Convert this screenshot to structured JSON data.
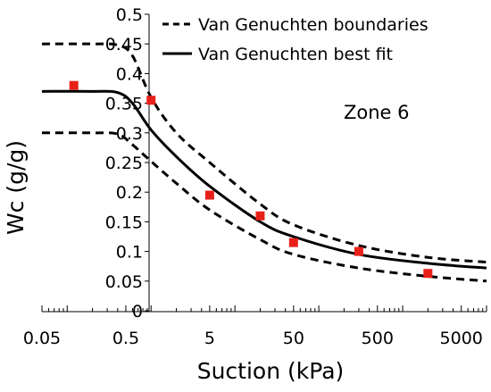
{
  "chart_data": {
    "type": "scatter",
    "xlabel": "Suction (kPa)",
    "ylabel": "Wc (g/g)",
    "x_scale": "log",
    "xlim": [
      0.05,
      10000
    ],
    "ylim": [
      0,
      0.5
    ],
    "x_tick_values": [
      0.05,
      0.5,
      5,
      50,
      500,
      5000
    ],
    "x_tick_labels": [
      "0.05",
      "0.5",
      "5",
      "50",
      "500",
      "5000"
    ],
    "y_tick_values": [
      0,
      0.05,
      0.1,
      0.15,
      0.2,
      0.25,
      0.3,
      0.35,
      0.4,
      0.45,
      0.5
    ],
    "y_tick_labels": [
      "0",
      "0.05",
      "0.1",
      "0.15",
      "0.2",
      "0.25",
      "0.3",
      "0.35",
      "0.4",
      "0.45",
      "0.5"
    ],
    "grid": false,
    "legend_position": "top-right",
    "legend": [
      {
        "label": "Van Genuchten boundaries",
        "style": "dashed"
      },
      {
        "label": "Van Genuchten best fit",
        "style": "solid"
      }
    ],
    "annotation": "Zone 6",
    "points": {
      "color": "#e8201a",
      "x": [
        0.12,
        1,
        5,
        20,
        50,
        300,
        2000
      ],
      "y": [
        0.38,
        0.355,
        0.195,
        0.16,
        0.115,
        0.1,
        0.063
      ]
    },
    "best_fit": {
      "color": "#000000",
      "x": [
        0.05,
        0.2,
        0.4,
        0.6,
        1,
        2,
        5,
        20,
        50,
        300,
        2000,
        10000
      ],
      "y": [
        0.37,
        0.37,
        0.368,
        0.35,
        0.305,
        0.26,
        0.21,
        0.15,
        0.125,
        0.095,
        0.08,
        0.072
      ]
    },
    "upper_boundary": {
      "color": "#000000",
      "x": [
        0.05,
        0.2,
        0.4,
        0.6,
        1,
        2,
        5,
        20,
        50,
        300,
        2000,
        10000
      ],
      "y": [
        0.45,
        0.45,
        0.448,
        0.43,
        0.36,
        0.3,
        0.25,
        0.18,
        0.145,
        0.11,
        0.09,
        0.082
      ]
    },
    "lower_boundary": {
      "color": "#000000",
      "x": [
        0.05,
        0.2,
        0.4,
        0.6,
        1,
        2,
        5,
        20,
        50,
        300,
        2000,
        10000
      ],
      "y": [
        0.3,
        0.3,
        0.298,
        0.28,
        0.252,
        0.215,
        0.17,
        0.12,
        0.095,
        0.072,
        0.058,
        0.05
      ]
    }
  }
}
